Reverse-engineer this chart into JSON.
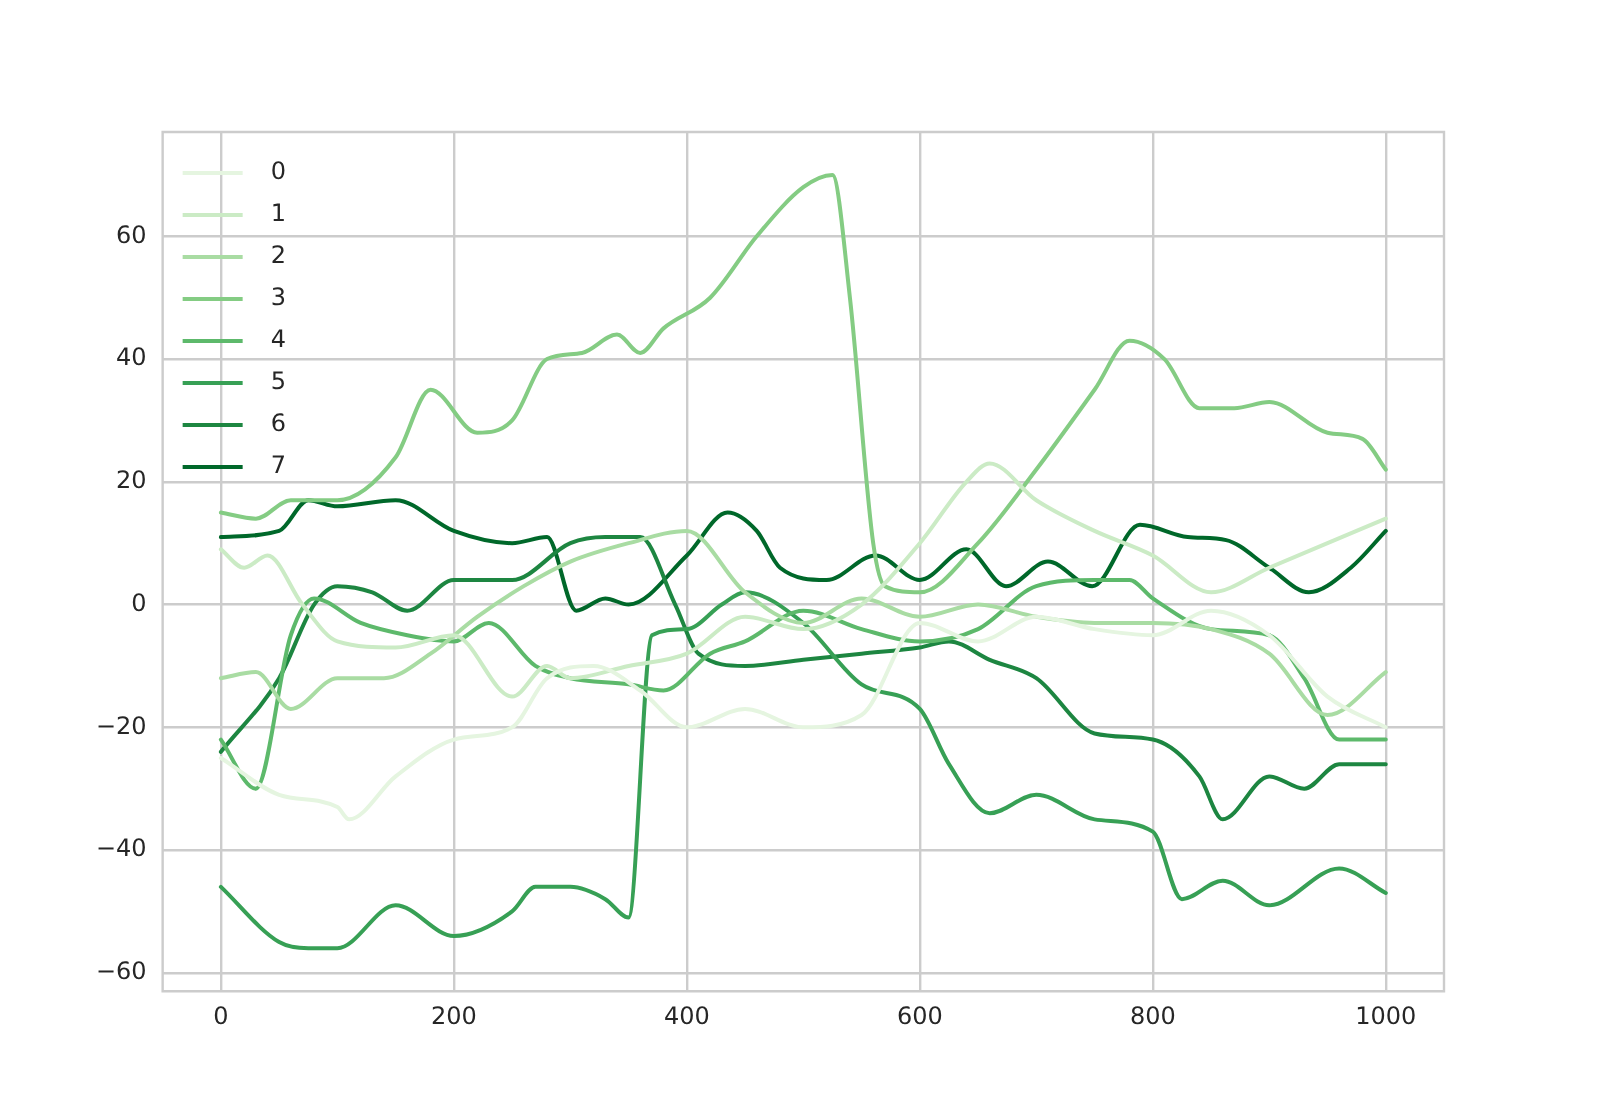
{
  "chart_data": {
    "type": "line",
    "xlim": [
      -50,
      1050
    ],
    "ylim": [
      -63,
      77
    ],
    "xticks": [
      0,
      200,
      400,
      600,
      800,
      1000
    ],
    "yticks": [
      -60,
      -40,
      -20,
      0,
      20,
      40,
      60
    ],
    "grid": true,
    "legend": "top left",
    "marker": "none",
    "line_style": "solid",
    "series": [
      {
        "name": "0",
        "color": "#e5f5e0",
        "x": [
          0,
          50,
          100,
          110,
          150,
          200,
          250,
          280,
          320,
          360,
          400,
          450,
          500,
          550,
          600,
          650,
          700,
          750,
          800,
          850,
          900,
          950,
          1000
        ],
        "values": [
          -25,
          -31,
          -33,
          -35,
          -28,
          -22,
          -20,
          -12,
          -10,
          -14,
          -20,
          -17,
          -20,
          -18,
          -3,
          -6,
          -2,
          -4,
          -5,
          -1,
          -5,
          -15,
          -20
        ]
      },
      {
        "name": "1",
        "color": "#cbebc5",
        "x": [
          0,
          20,
          40,
          70,
          100,
          150,
          200,
          250,
          280,
          300,
          350,
          400,
          450,
          500,
          550,
          600,
          640,
          660,
          700,
          750,
          800,
          850,
          900,
          950,
          1000
        ],
        "values": [
          9,
          6,
          8,
          0,
          -6,
          -7,
          -5,
          -15,
          -10,
          -12,
          -10,
          -8,
          -2,
          -4,
          0,
          10,
          20,
          23,
          17,
          12,
          8,
          2,
          6,
          10,
          14
        ]
      },
      {
        "name": "2",
        "color": "#a9dca3",
        "x": [
          0,
          30,
          60,
          100,
          140,
          180,
          220,
          260,
          300,
          350,
          400,
          450,
          500,
          550,
          600,
          650,
          700,
          750,
          800,
          850,
          900,
          950,
          1000
        ],
        "values": [
          -12,
          -11,
          -17,
          -12,
          -12,
          -8,
          -2,
          3,
          7,
          10,
          12,
          2,
          -3,
          1,
          -2,
          0,
          -2,
          -3,
          -3,
          -4,
          -8,
          -18,
          -11
        ]
      },
      {
        "name": "3",
        "color": "#84cc83",
        "x": [
          0,
          30,
          60,
          100,
          150,
          180,
          220,
          250,
          280,
          310,
          340,
          360,
          380,
          420,
          460,
          500,
          525,
          540,
          560,
          570,
          600,
          650,
          700,
          750,
          780,
          810,
          840,
          870,
          900,
          950,
          980,
          1000
        ],
        "values": [
          15,
          14,
          17,
          17,
          24,
          35,
          28,
          30,
          40,
          41,
          44,
          41,
          45,
          50,
          60,
          68,
          70,
          50,
          10,
          3,
          2,
          10,
          22,
          35,
          43,
          40,
          32,
          32,
          33,
          28,
          27,
          22
        ]
      },
      {
        "name": "4",
        "color": "#5db96b",
        "x": [
          0,
          30,
          60,
          80,
          120,
          160,
          200,
          230,
          270,
          300,
          350,
          380,
          420,
          450,
          500,
          550,
          600,
          650,
          700,
          750,
          780,
          800,
          850,
          900,
          930,
          960,
          1000
        ],
        "values": [
          -22,
          -30,
          -5,
          1,
          -3,
          -5,
          -6,
          -3,
          -10,
          -12,
          -13,
          -14,
          -8,
          -6,
          -1,
          -4,
          -6,
          -4,
          3,
          4,
          4,
          1,
          -4,
          -5,
          -12,
          -22,
          -22
        ]
      },
      {
        "name": "5",
        "color": "#37a055",
        "x": [
          0,
          50,
          75,
          100,
          150,
          200,
          250,
          270,
          300,
          330,
          350,
          370,
          400,
          430,
          450,
          500,
          550,
          600,
          625,
          660,
          700,
          750,
          800,
          825,
          860,
          900,
          960,
          1000
        ],
        "values": [
          -46,
          -55,
          -56,
          -56,
          -49,
          -54,
          -50,
          -46,
          -46,
          -48,
          -51,
          -5,
          -4,
          0,
          2,
          -3,
          -13,
          -17,
          -26,
          -34,
          -31,
          -35,
          -37,
          -48,
          -45,
          -49,
          -43,
          -47
        ]
      },
      {
        "name": "6",
        "color": "#1d8641",
        "x": [
          0,
          50,
          80,
          100,
          130,
          160,
          200,
          250,
          300,
          330,
          360,
          390,
          410,
          450,
          500,
          550,
          600,
          625,
          660,
          700,
          750,
          800,
          840,
          860,
          900,
          930,
          960,
          1000
        ],
        "values": [
          -24,
          -12,
          0,
          3,
          2,
          -1,
          4,
          4,
          10,
          11,
          11,
          0,
          -8,
          -10,
          -9,
          -8,
          -7,
          -6,
          -9,
          -12,
          -21,
          -22,
          -28,
          -35,
          -28,
          -30,
          -26,
          -26
        ]
      },
      {
        "name": "7",
        "color": "#00682a",
        "x": [
          0,
          50,
          75,
          100,
          150,
          200,
          250,
          280,
          305,
          330,
          350,
          400,
          435,
          460,
          480,
          520,
          562,
          600,
          640,
          674,
          710,
          748,
          789,
          830,
          863,
          900,
          934,
          970,
          1000
        ],
        "values": [
          11,
          12,
          17,
          16,
          17,
          12,
          10,
          11,
          -1,
          1,
          0,
          8,
          15,
          12,
          6,
          4,
          8,
          4,
          9,
          3,
          7,
          3,
          13,
          11,
          10.5,
          6,
          2,
          6,
          12
        ]
      }
    ]
  }
}
